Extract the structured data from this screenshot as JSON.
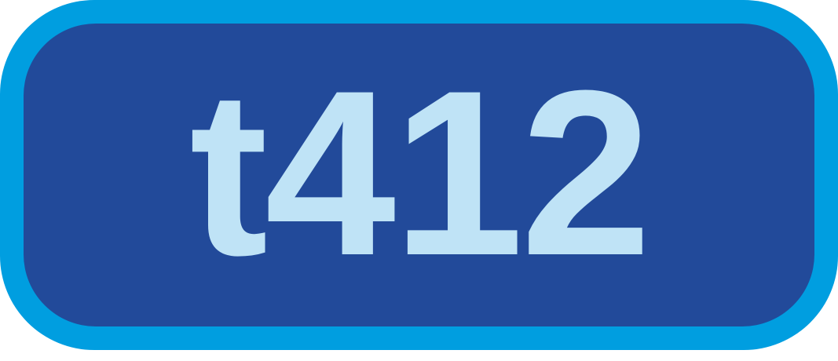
{
  "badge": {
    "label": "t412",
    "colors": {
      "outer_border": "#009ee0",
      "inner_fill": "#224a9a",
      "text": "#bfe3f6"
    }
  }
}
